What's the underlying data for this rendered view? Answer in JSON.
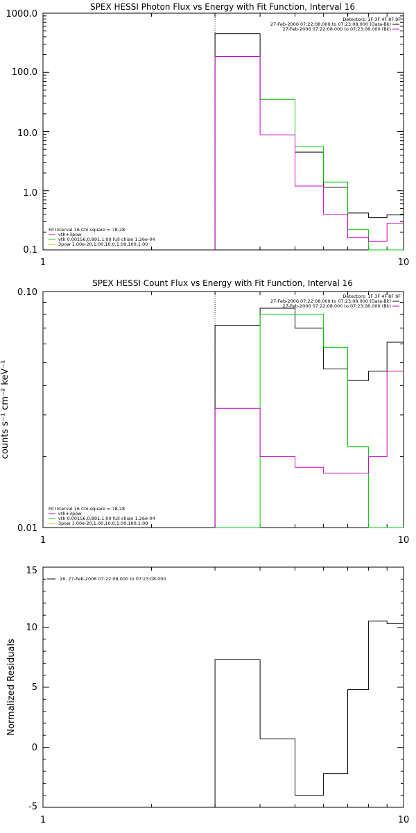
{
  "colors": {
    "black": "#000000",
    "magenta": "#cc00cc",
    "green": "#00cc00",
    "yellow": "#c8c800"
  },
  "chart_data": [
    {
      "type": "line",
      "title": "SPEX HESSI Photon Flux vs Energy with Fit Function, Interval 16",
      "xlabel": "",
      "ylabel": "",
      "xscale": "log",
      "yscale": "log",
      "xlim": [
        1,
        10
      ],
      "ylim": [
        0.1,
        1000
      ],
      "x_ticks": [
        "1",
        "10"
      ],
      "y_ticks": [
        "1000.0",
        "100.0",
        "10.0",
        "1.0",
        "0.1"
      ],
      "vline_x": 3.0,
      "info_lines": [
        "Detectors: 1F 3F 4F 8F 9F",
        "27-Feb-2006 07:22:08.000 to 07:23:08.000 (Data-Bk)",
        "27-Feb-2006 07:22:08.000 to 07:23:08.000 (Bk)"
      ],
      "fit_lines": [
        "Fit Interval 16   Chi-square = 78.28",
        "vth+3pow",
        "vth 0.00156,0.891,1.00  full chian 1.26e-04",
        "3pow 1.00e-20,1.00,10.0,1.00,100,1.00"
      ],
      "edges": [
        3.0,
        4.0,
        5.0,
        6.0,
        7.0,
        8.0,
        9.0,
        10.0
      ],
      "series": [
        {
          "color": "black",
          "values": [
            450,
            35,
            4.5,
            1.15,
            0.42,
            0.35,
            0.39
          ]
        },
        {
          "color": "green",
          "values": [
            185,
            35,
            5.6,
            1.4,
            0.22,
            0.1,
            0.1
          ]
        },
        {
          "color": "magenta",
          "values": [
            185,
            8.8,
            1.2,
            0.4,
            0.16,
            0.14,
            0.28
          ]
        }
      ]
    },
    {
      "type": "line",
      "title": "SPEX HESSI Count Flux vs Energy with Fit Function, Interval 16",
      "xlabel": "",
      "ylabel": "counts s⁻¹ cm⁻² keV⁻¹",
      "xscale": "log",
      "yscale": "log",
      "xlim": [
        1,
        10
      ],
      "ylim": [
        0.01,
        0.1
      ],
      "x_ticks": [
        "1",
        "10"
      ],
      "y_ticks": [
        "0.10",
        "0.01"
      ],
      "vline_x": 3.0,
      "info_lines": [
        "Detectors: 1F 3F 4F 8F 9F",
        "27-Feb-2006 07:22:08.000 to 07:23:08.000 (Data-Bk)",
        "27-Feb-2006 07:22:08.000 to 07:23:08.000 (Bk)"
      ],
      "fit_lines": [
        "Fit Interval 16   Chi-square = 78.28",
        "vth+3pow",
        "vth 0.00156,0.891,1.00  full chian 1.26e-04",
        "3pow 1.00e-20,1.00,10.0,1.00,100,1.00"
      ],
      "edges": [
        3.0,
        4.0,
        5.0,
        6.0,
        7.0,
        8.0,
        9.0,
        10.0
      ],
      "series": [
        {
          "color": "black",
          "values": [
            0.072,
            0.085,
            0.07,
            0.047,
            0.042,
            0.046,
            0.061
          ]
        },
        {
          "color": "green",
          "values": [
            0.01,
            0.08,
            0.08,
            0.058,
            0.022,
            0.01,
            0.01
          ]
        },
        {
          "color": "magenta",
          "values": [
            0.032,
            0.02,
            0.018,
            0.017,
            0.017,
            0.02,
            0.046
          ]
        }
      ]
    },
    {
      "type": "line",
      "title": "",
      "xlabel": "",
      "ylabel": "Normalized Residuals",
      "xscale": "log",
      "yscale": "linear",
      "xlim": [
        1,
        10
      ],
      "ylim": [
        -5,
        15
      ],
      "x_ticks": [
        "1",
        "10"
      ],
      "y_ticks": [
        "15",
        "10",
        "5",
        "0",
        "-5"
      ],
      "legend": "16. 27-Feb-2006 07:22:08.000 to 07:23:08.000",
      "edges": [
        3.0,
        4.0,
        5.0,
        6.0,
        7.0,
        8.0,
        9.0,
        10.0
      ],
      "series": [
        {
          "color": "black",
          "values": [
            7.3,
            0.7,
            -4.0,
            -2.2,
            4.8,
            10.5,
            10.3
          ]
        }
      ]
    }
  ]
}
